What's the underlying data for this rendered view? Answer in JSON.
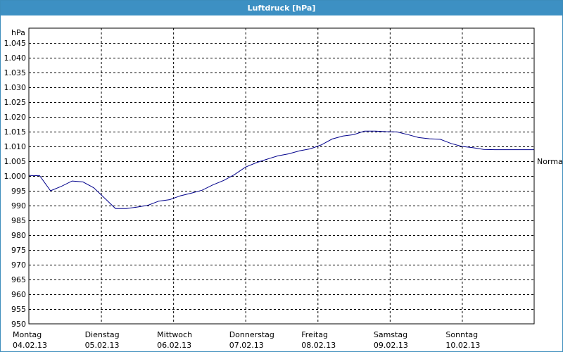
{
  "window": {
    "title": "Luftdruck [hPa]"
  },
  "colors": {
    "title_bar": "#3d90c3",
    "series": "#00008b",
    "grid": "#000000"
  },
  "chart_data": {
    "type": "line",
    "title": "Luftdruck [hPa]",
    "ylabel": "hPa",
    "xlabel": "",
    "ylim": [
      950,
      1050
    ],
    "xlim": [
      0,
      7
    ],
    "grid": true,
    "y_ticks": [
      "950",
      "955",
      "960",
      "965",
      "970",
      "975",
      "980",
      "985",
      "990",
      "995",
      "1.000",
      "1.005",
      "1.010",
      "1.015",
      "1.020",
      "1.025",
      "1.030",
      "1.035",
      "1.040",
      "1.045"
    ],
    "x_ticks": [
      {
        "day": "Montag",
        "date": "04.02.13"
      },
      {
        "day": "Dienstag",
        "date": "05.02.13"
      },
      {
        "day": "Mittwoch",
        "date": "06.02.13"
      },
      {
        "day": "Donnerstag",
        "date": "07.02.13"
      },
      {
        "day": "Freitag",
        "date": "08.02.13"
      },
      {
        "day": "Samstag",
        "date": "09.02.13"
      },
      {
        "day": "Sonntag",
        "date": "10.02.13"
      }
    ],
    "reference_label": "Normal",
    "reference_value": 1005,
    "series": [
      {
        "x": [
          0,
          0.15,
          0.3,
          0.45,
          0.6,
          0.75,
          0.9,
          1.05,
          1.2,
          1.35,
          1.5,
          1.65,
          1.8,
          1.95,
          2.1,
          2.25,
          2.4,
          2.55,
          2.7,
          2.85,
          3.0,
          3.15,
          3.3,
          3.45,
          3.6,
          3.75,
          3.9,
          4.05,
          4.2,
          4.35,
          4.5,
          4.65,
          4.8,
          4.95,
          5.1,
          5.25,
          5.4,
          5.55,
          5.7,
          5.85,
          6.0,
          6.15,
          6.3,
          6.45,
          6.6,
          6.75,
          6.9,
          7.0
        ],
        "values": [
          1000.2,
          1000.1,
          995.0,
          996.5,
          998.3,
          998.0,
          996.0,
          992.5,
          989.0,
          989.0,
          989.5,
          990.1,
          991.5,
          992.0,
          993.3,
          994.2,
          995.2,
          997.0,
          998.5,
          1000.5,
          1003.0,
          1004.5,
          1005.7,
          1006.8,
          1007.5,
          1008.5,
          1009.2,
          1010.5,
          1012.5,
          1013.5,
          1014.0,
          1015.2,
          1015.2,
          1015.0,
          1014.9,
          1014.0,
          1013.0,
          1012.6,
          1012.4,
          1011.0,
          1010.0,
          1009.6,
          1009.0,
          1008.9,
          1008.9,
          1008.9,
          1008.9,
          1008.9
        ]
      }
    ]
  }
}
